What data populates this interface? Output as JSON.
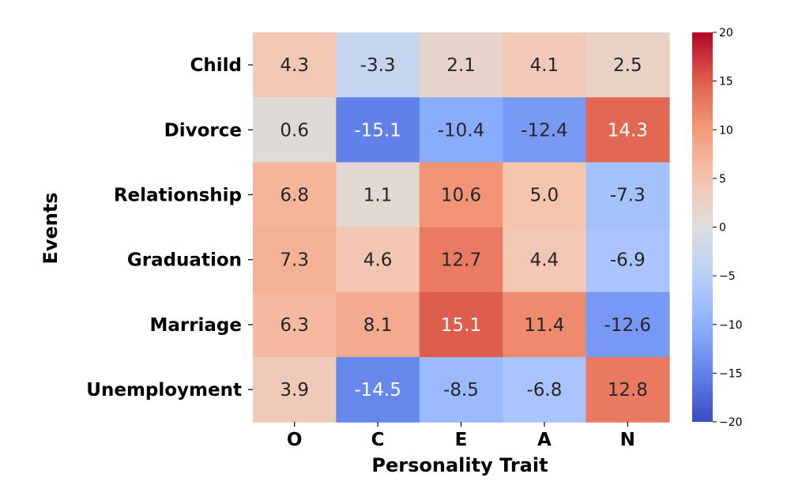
{
  "chart_data": {
    "type": "heatmap",
    "title": "",
    "xlabel": "Personality Trait",
    "ylabel": "Events",
    "x_categories": [
      "O",
      "C",
      "E",
      "A",
      "N"
    ],
    "y_categories": [
      "Child",
      "Divorce",
      "Relationship",
      "Graduation",
      "Marriage",
      "Unemployment"
    ],
    "values": [
      [
        4.3,
        -3.3,
        2.1,
        4.1,
        2.5
      ],
      [
        0.6,
        -15.1,
        -10.4,
        -12.4,
        14.3
      ],
      [
        6.8,
        1.1,
        10.6,
        5.0,
        -7.3
      ],
      [
        7.3,
        4.6,
        12.7,
        4.4,
        -6.9
      ],
      [
        6.3,
        8.1,
        15.1,
        11.4,
        -12.6
      ],
      [
        3.9,
        -14.5,
        -8.5,
        -6.8,
        12.8
      ]
    ],
    "colormap": "coolwarm",
    "vmin": -20,
    "vmax": 20,
    "colorbar_ticks": [
      20,
      15,
      10,
      5,
      0,
      -5,
      -10,
      -15,
      -20
    ],
    "colorbar_tick_labels": [
      "20",
      "15",
      "10",
      "5",
      "0",
      "−5",
      "−10",
      "−15",
      "−20"
    ],
    "cell_text_format": "one-decimal"
  }
}
